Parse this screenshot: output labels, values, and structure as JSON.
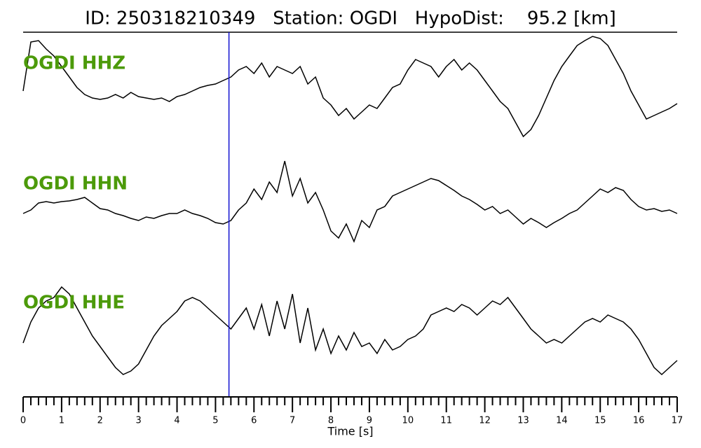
{
  "chart_data": {
    "type": "waveform",
    "title": "ID: 250318210349   Station: OGDI   HypoDist:    95.2 [km]",
    "xlabel": "Time [s]",
    "x": [
      0,
      0.2,
      0.4,
      0.6,
      0.8,
      1,
      1.2,
      1.4,
      1.6,
      1.8,
      2,
      2.2,
      2.4,
      2.6,
      2.8,
      3,
      3.2,
      3.4,
      3.6,
      3.8,
      4,
      4.2,
      4.4,
      4.6,
      4.8,
      5,
      5.2,
      5.4,
      5.6,
      5.8,
      6,
      6.2,
      6.4,
      6.6,
      6.8,
      7,
      7.2,
      7.4,
      7.6,
      7.8,
      8,
      8.2,
      8.4,
      8.6,
      8.8,
      9,
      9.2,
      9.4,
      9.6,
      9.8,
      10,
      10.2,
      10.4,
      10.6,
      10.8,
      11,
      11.2,
      11.4,
      11.6,
      11.8,
      12,
      12.2,
      12.4,
      12.6,
      12.8,
      13,
      13.2,
      13.4,
      13.6,
      13.8,
      14,
      14.2,
      14.4,
      14.6,
      14.8,
      15,
      15.2,
      15.4,
      15.6,
      15.8,
      16,
      16.2,
      16.4,
      16.6,
      16.8,
      17
    ],
    "xlim": [
      0,
      17
    ],
    "xticks": [
      0,
      1,
      2,
      3,
      4,
      5,
      6,
      7,
      8,
      9,
      10,
      11,
      12,
      13,
      14,
      15,
      16,
      17
    ],
    "xminorticks": [
      0.2,
      0.4,
      0.6,
      0.8,
      1.2,
      1.4,
      1.6,
      1.8,
      2.2,
      2.4,
      2.6,
      2.8,
      3.2,
      3.4,
      3.6,
      3.8,
      4.2,
      4.4,
      4.6,
      4.8,
      5.2,
      5.4,
      5.6,
      5.8,
      6.2,
      6.4,
      6.6,
      6.8,
      7.2,
      7.4,
      7.6,
      7.8,
      8.2,
      8.4,
      8.6,
      8.8,
      9.2,
      9.4,
      9.6,
      9.8,
      10.2,
      10.4,
      10.6,
      10.8,
      11.2,
      11.4,
      11.6,
      11.8,
      12.2,
      12.4,
      12.6,
      12.8,
      13.2,
      13.4,
      13.6,
      13.8,
      14.2,
      14.4,
      14.6,
      14.8,
      15.2,
      15.4,
      15.6,
      15.8,
      16.2,
      16.4,
      16.6,
      16.8
    ],
    "ylim": [
      -80,
      80
    ],
    "pick": 5.35,
    "pick_color": "#1010d0",
    "label_color": "#4c9a0a",
    "series": [
      {
        "name": "OGDI HHZ",
        "color": "#000000",
        "values": [
          -2,
          68,
          70,
          58,
          48,
          33,
          18,
          3,
          -7,
          -12,
          -14,
          -12,
          -7,
          -12,
          -4,
          -10,
          -12,
          -14,
          -12,
          -17,
          -10,
          -7,
          -2,
          3,
          6,
          8,
          13,
          18,
          28,
          33,
          23,
          38,
          18,
          33,
          28,
          23,
          33,
          8,
          18,
          -12,
          -22,
          -37,
          -27,
          -42,
          -32,
          -22,
          -27,
          -12,
          3,
          8,
          28,
          43,
          38,
          33,
          18,
          33,
          43,
          28,
          38,
          28,
          13,
          -2,
          -17,
          -27,
          -47,
          -67,
          -57,
          -37,
          -12,
          13,
          33,
          48,
          63,
          70,
          76,
          73,
          63,
          43,
          23,
          -2,
          -22,
          -42,
          -37,
          -32,
          -27,
          -20
        ]
      },
      {
        "name": "OGDI HHN",
        "color": "#000000",
        "values": [
          -5,
          0,
          10,
          12,
          10,
          12,
          13,
          15,
          18,
          10,
          2,
          0,
          -5,
          -8,
          -12,
          -15,
          -10,
          -12,
          -8,
          -5,
          -5,
          0,
          -5,
          -8,
          -12,
          -18,
          -20,
          -15,
          0,
          10,
          30,
          15,
          40,
          25,
          70,
          20,
          45,
          10,
          25,
          0,
          -30,
          -40,
          -20,
          -45,
          -15,
          -25,
          0,
          5,
          20,
          25,
          30,
          35,
          40,
          45,
          42,
          35,
          28,
          20,
          15,
          8,
          0,
          5,
          -5,
          0,
          -10,
          -20,
          -12,
          -18,
          -25,
          -18,
          -12,
          -5,
          0,
          10,
          20,
          30,
          25,
          32,
          28,
          15,
          5,
          0,
          2,
          -2,
          0,
          -5
        ]
      },
      {
        "name": "OGDI HHE",
        "color": "#000000",
        "values": [
          -20,
          10,
          30,
          40,
          45,
          60,
          50,
          30,
          10,
          -10,
          -25,
          -40,
          -55,
          -65,
          -60,
          -50,
          -30,
          -10,
          5,
          15,
          25,
          40,
          45,
          40,
          30,
          20,
          10,
          0,
          15,
          30,
          0,
          35,
          -10,
          40,
          0,
          50,
          -20,
          30,
          -30,
          0,
          -35,
          -10,
          -30,
          -5,
          -25,
          -20,
          -35,
          -15,
          -30,
          -25,
          -15,
          -10,
          0,
          20,
          25,
          30,
          25,
          35,
          30,
          20,
          30,
          40,
          35,
          45,
          30,
          15,
          0,
          -10,
          -20,
          -15,
          -20,
          -10,
          0,
          10,
          15,
          10,
          20,
          15,
          10,
          0,
          -15,
          -35,
          -55,
          -65,
          -55,
          -45
        ]
      }
    ]
  }
}
